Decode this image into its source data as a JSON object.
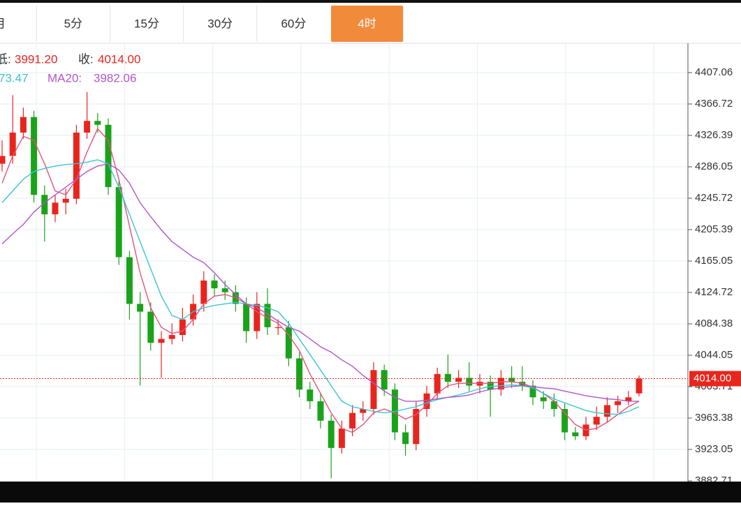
{
  "tabs": [
    "月",
    "5分",
    "15分",
    "30分",
    "60分",
    "4时"
  ],
  "active_tab": 5,
  "info": {
    "low_label": "低:",
    "low": "3991.20",
    "close_label": "收:",
    "close": "4014.00",
    "ma10_value": "73.47",
    "ma20_label": "MA20:",
    "ma20_value": "3982.06"
  },
  "chart_data": {
    "type": "candlestick",
    "up_color": "#e8251d",
    "down_color": "#1aa31a",
    "ylim": [
      3881.8,
      4444.7
    ],
    "yticks": [
      {
        "value": 4407.06,
        "label": "4407.06"
      },
      {
        "value": 4366.72,
        "label": "4366.72"
      },
      {
        "value": 4326.39,
        "label": "4326.39"
      },
      {
        "value": 4286.05,
        "label": "4286.05"
      },
      {
        "value": 4245.72,
        "label": "4245.72"
      },
      {
        "value": 4205.39,
        "label": "4205.39"
      },
      {
        "value": 4165.05,
        "label": "4165.05"
      },
      {
        "value": 4124.72,
        "label": "4124.72"
      },
      {
        "value": 4084.38,
        "label": "4084.38"
      },
      {
        "value": 4044.05,
        "label": "4044.05"
      },
      {
        "value": 4003.71,
        "label": "4003.71"
      },
      {
        "value": 3963.38,
        "label": "3963.38"
      },
      {
        "value": 3923.05,
        "label": "3923.05"
      },
      {
        "value": 3882.71,
        "label": "3882.71"
      }
    ],
    "grid": true,
    "current_price": {
      "value": 4014,
      "label": "4014.00"
    },
    "current_price_color": "#e8251d",
    "open": [
      4290,
      4300,
      4330,
      4350,
      4250,
      4225,
      4240,
      4245,
      4330,
      4345,
      4340,
      4260,
      4170,
      4110,
      4100,
      4060,
      4065,
      4070,
      4090,
      4110,
      4140,
      4130,
      4125,
      4110,
      4075,
      4110,
      4080,
      4080,
      4040,
      4000,
      3985,
      3960,
      3925,
      3950,
      3970,
      3975,
      4025,
      4000,
      3945,
      3930,
      3975,
      3995,
      4020,
      4010,
      4015,
      4005,
      4010,
      4000,
      4015,
      4010,
      4005,
      3990,
      3985,
      3975,
      3945,
      3940,
      3955,
      3965,
      3980,
      3985,
      3995
    ],
    "high": [
      4320,
      4378,
      4362,
      4358,
      4262,
      4250,
      4258,
      4340,
      4382,
      4355,
      4348,
      4268,
      4178,
      4125,
      4112,
      4075,
      4085,
      4105,
      4122,
      4152,
      4148,
      4140,
      4134,
      4118,
      4125,
      4130,
      4090,
      4088,
      4048,
      4010,
      3995,
      3968,
      3960,
      3980,
      3985,
      4035,
      4032,
      4008,
      3955,
      3985,
      4005,
      4028,
      4045,
      4025,
      4035,
      4020,
      4018,
      4025,
      4030,
      4030,
      4012,
      3998,
      3995,
      3982,
      3952,
      3965,
      3978,
      3990,
      3992,
      3998,
      4018
    ],
    "low": [
      4280,
      4290,
      4322,
      4240,
      4190,
      4215,
      4225,
      4238,
      4322,
      4330,
      4250,
      4160,
      4090,
      4005,
      4050,
      4015,
      4058,
      4062,
      4082,
      4100,
      4120,
      4115,
      4100,
      4060,
      4065,
      4070,
      4070,
      4030,
      3990,
      3975,
      3950,
      3886,
      3918,
      3940,
      3960,
      3968,
      3992,
      3935,
      3915,
      3922,
      3965,
      3988,
      4002,
      4002,
      3998,
      3995,
      3965,
      3992,
      4002,
      3998,
      3980,
      3975,
      3965,
      3935,
      3935,
      3935,
      3948,
      3958,
      3970,
      3980,
      3991.2
    ],
    "close": [
      4300,
      4330,
      4350,
      4250,
      4225,
      4240,
      4245,
      4330,
      4345,
      4340,
      4260,
      4170,
      4110,
      4100,
      4060,
      4065,
      4070,
      4090,
      4110,
      4140,
      4130,
      4125,
      4110,
      4075,
      4110,
      4080,
      4080,
      4040,
      4000,
      3985,
      3960,
      3925,
      3950,
      3970,
      3975,
      4025,
      4000,
      3945,
      3930,
      3975,
      3995,
      4020,
      4010,
      4015,
      4005,
      4010,
      4000,
      4015,
      4010,
      4005,
      3990,
      3985,
      3975,
      3945,
      3940,
      3955,
      3965,
      3980,
      3985,
      3990,
      4014
    ],
    "lines": [
      {
        "color": "#e8517a",
        "values": [
          4265,
          4300,
          4325,
          4320,
          4290,
          4255,
          4250,
          4270,
          4305,
          4335,
          4320,
          4270,
          4210,
          4150,
          4105,
          4080,
          4072,
          4075,
          4090,
          4110,
          4120,
          4122,
          4118,
          4110,
          4100,
          4092,
          4085,
          4070,
          4050,
          4020,
          3995,
          3970,
          3950,
          3945,
          3955,
          3970,
          3975,
          3970,
          3962,
          3968,
          3980,
          3995,
          4005,
          4008,
          4008,
          4008,
          4008,
          4010,
          4010,
          4008,
          4003,
          3995,
          3985,
          3970,
          3955,
          3948,
          3950,
          3958,
          3968,
          3978,
          3985
        ]
      },
      {
        "color": "#3cc4d4",
        "values": [
          4240,
          4255,
          4270,
          4280,
          4284,
          4287,
          4289,
          4290,
          4292,
          4295,
          4290,
          4260,
          4225,
          4190,
          4155,
          4120,
          4095,
          4090,
          4100,
          4105,
          4108,
          4110,
          4112,
          4110,
          4108,
          4105,
          4100,
          4085,
          4065,
          4045,
          4025,
          4005,
          3985,
          3978,
          3975,
          3972,
          3970,
          3972,
          3975,
          3978,
          3983,
          3987,
          3990,
          3993,
          3997,
          4001,
          4004,
          4005,
          4006,
          4005,
          4002,
          3995,
          3988,
          3983,
          3978,
          3973,
          3970,
          3969,
          3968,
          3972,
          3978
        ]
      },
      {
        "color": "#b256c8",
        "values": [
          4187,
          4200,
          4212,
          4228,
          4240,
          4250,
          4260,
          4270,
          4280,
          4287,
          4290,
          4282,
          4265,
          4240,
          4222,
          4205,
          4190,
          4180,
          4170,
          4163,
          4150,
          4135,
          4122,
          4110,
          4105,
          4097,
          4088,
          4080,
          4075,
          4065,
          4055,
          4048,
          4038,
          4030,
          4018,
          4008,
          3998,
          3990,
          3985,
          3985,
          3986,
          3988,
          3990,
          3991,
          3993,
          3997,
          4000,
          4002,
          4004,
          4005,
          4004,
          4002,
          4001,
          3998,
          3995,
          3992,
          3990,
          3988,
          3987,
          3985,
          3985
        ]
      }
    ]
  }
}
